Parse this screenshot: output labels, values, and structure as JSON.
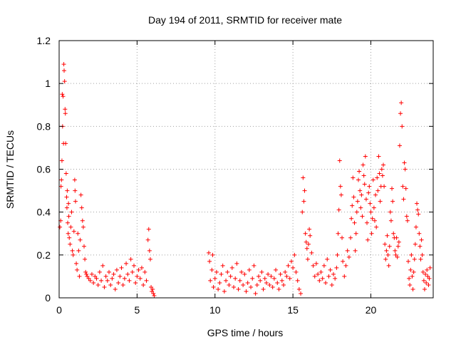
{
  "chart_data": {
    "type": "scatter",
    "title": "Day 194 of 2011, SRMTID for receiver mate",
    "xlabel": "GPS time / hours",
    "ylabel": "SRMTID / TECUs",
    "xlim": [
      0,
      24
    ],
    "ylim": [
      0,
      1.2
    ],
    "x_ticks": [
      0,
      5,
      10,
      15,
      20
    ],
    "x_tick_labels": [
      "0",
      "5",
      "10",
      "15",
      "20"
    ],
    "y_ticks": [
      0,
      0.2,
      0.4,
      0.6,
      0.8,
      1.0,
      1.2
    ],
    "y_tick_labels": [
      "0",
      "0.2",
      "0.4",
      "0.6",
      "0.8",
      "1",
      "1.2"
    ],
    "grid": true,
    "marker": "+",
    "color": "#ff0000",
    "series": [
      {
        "name": "SRMTID",
        "points": [
          [
            0.05,
            0.33
          ],
          [
            0.1,
            0.36
          ],
          [
            0.12,
            0.52
          ],
          [
            0.15,
            0.55
          ],
          [
            0.18,
            0.64
          ],
          [
            0.2,
            0.95
          ],
          [
            0.22,
            0.8
          ],
          [
            0.25,
            0.94
          ],
          [
            0.28,
            0.72
          ],
          [
            0.3,
            1.09
          ],
          [
            0.32,
            1.06
          ],
          [
            0.35,
            1.01
          ],
          [
            0.38,
            0.88
          ],
          [
            0.4,
            0.86
          ],
          [
            0.42,
            0.72
          ],
          [
            0.45,
            0.58
          ],
          [
            0.48,
            0.47
          ],
          [
            0.5,
            0.42
          ],
          [
            0.52,
            0.5
          ],
          [
            0.55,
            0.35
          ],
          [
            0.58,
            0.3
          ],
          [
            0.6,
            0.44
          ],
          [
            0.62,
            0.38
          ],
          [
            0.65,
            0.28
          ],
          [
            0.7,
            0.25
          ],
          [
            0.75,
            0.33
          ],
          [
            0.8,
            0.4
          ],
          [
            0.85,
            0.22
          ],
          [
            0.9,
            0.2
          ],
          [
            0.95,
            0.31
          ],
          [
            1.0,
            0.55
          ],
          [
            1.02,
            0.5
          ],
          [
            1.05,
            0.45
          ],
          [
            1.1,
            0.16
          ],
          [
            1.15,
            0.13
          ],
          [
            1.2,
            0.3
          ],
          [
            1.25,
            0.22
          ],
          [
            1.3,
            0.1
          ],
          [
            1.35,
            0.27
          ],
          [
            1.4,
            0.48
          ],
          [
            1.45,
            0.42
          ],
          [
            1.5,
            0.36
          ],
          [
            1.55,
            0.33
          ],
          [
            1.6,
            0.24
          ],
          [
            1.65,
            0.18
          ],
          [
            1.7,
            0.12
          ],
          [
            1.75,
            0.11
          ],
          [
            1.8,
            0.1
          ],
          [
            1.9,
            0.09
          ],
          [
            2.0,
            0.08
          ],
          [
            2.1,
            0.11
          ],
          [
            2.2,
            0.07
          ],
          [
            2.3,
            0.1
          ],
          [
            2.4,
            0.09
          ],
          [
            2.5,
            0.06
          ],
          [
            2.6,
            0.12
          ],
          [
            2.7,
            0.08
          ],
          [
            2.8,
            0.15
          ],
          [
            2.9,
            0.05
          ],
          [
            3.0,
            0.1
          ],
          [
            3.1,
            0.08
          ],
          [
            3.2,
            0.12
          ],
          [
            3.3,
            0.06
          ],
          [
            3.4,
            0.09
          ],
          [
            3.5,
            0.11
          ],
          [
            3.6,
            0.04
          ],
          [
            3.7,
            0.13
          ],
          [
            3.8,
            0.07
          ],
          [
            3.9,
            0.1
          ],
          [
            4.0,
            0.14
          ],
          [
            4.1,
            0.06
          ],
          [
            4.2,
            0.09
          ],
          [
            4.3,
            0.16
          ],
          [
            4.4,
            0.11
          ],
          [
            4.5,
            0.08
          ],
          [
            4.6,
            0.18
          ],
          [
            4.7,
            0.12
          ],
          [
            4.8,
            0.15
          ],
          [
            4.9,
            0.07
          ],
          [
            5.0,
            0.1
          ],
          [
            5.1,
            0.13
          ],
          [
            5.2,
            0.09
          ],
          [
            5.3,
            0.14
          ],
          [
            5.4,
            0.06
          ],
          [
            5.5,
            0.12
          ],
          [
            5.6,
            0.08
          ],
          [
            5.7,
            0.27
          ],
          [
            5.75,
            0.32
          ],
          [
            5.8,
            0.22
          ],
          [
            5.85,
            0.18
          ],
          [
            5.9,
            0.05
          ],
          [
            5.95,
            0.03
          ],
          [
            6.0,
            0.04
          ],
          [
            6.05,
            0.02
          ],
          [
            6.1,
            0.01
          ],
          [
            9.6,
            0.21
          ],
          [
            9.65,
            0.17
          ],
          [
            9.7,
            0.08
          ],
          [
            9.8,
            0.13
          ],
          [
            9.85,
            0.2
          ],
          [
            9.9,
            0.05
          ],
          [
            10.0,
            0.09
          ],
          [
            10.1,
            0.12
          ],
          [
            10.2,
            0.04
          ],
          [
            10.3,
            0.07
          ],
          [
            10.4,
            0.11
          ],
          [
            10.5,
            0.15
          ],
          [
            10.6,
            0.03
          ],
          [
            10.7,
            0.08
          ],
          [
            10.8,
            0.12
          ],
          [
            10.9,
            0.06
          ],
          [
            11.0,
            0.1
          ],
          [
            11.1,
            0.14
          ],
          [
            11.2,
            0.05
          ],
          [
            11.3,
            0.09
          ],
          [
            11.4,
            0.16
          ],
          [
            11.5,
            0.04
          ],
          [
            11.6,
            0.08
          ],
          [
            11.7,
            0.12
          ],
          [
            11.8,
            0.06
          ],
          [
            11.9,
            0.11
          ],
          [
            12.0,
            0.03
          ],
          [
            12.1,
            0.07
          ],
          [
            12.2,
            0.13
          ],
          [
            12.3,
            0.05
          ],
          [
            12.4,
            0.09
          ],
          [
            12.5,
            0.15
          ],
          [
            12.6,
            0.02
          ],
          [
            12.7,
            0.06
          ],
          [
            12.8,
            0.1
          ],
          [
            12.9,
            0.08
          ],
          [
            13.0,
            0.12
          ],
          [
            13.1,
            0.04
          ],
          [
            13.2,
            0.09
          ],
          [
            13.3,
            0.07
          ],
          [
            13.4,
            0.11
          ],
          [
            13.5,
            0.06
          ],
          [
            13.6,
            0.1
          ],
          [
            13.7,
            0.05
          ],
          [
            13.8,
            0.09
          ],
          [
            13.9,
            0.13
          ],
          [
            14.0,
            0.07
          ],
          [
            14.1,
            0.04
          ],
          [
            14.2,
            0.11
          ],
          [
            14.3,
            0.08
          ],
          [
            14.4,
            0.06
          ],
          [
            14.5,
            0.12
          ],
          [
            14.6,
            0.1
          ],
          [
            14.7,
            0.15
          ],
          [
            14.8,
            0.09
          ],
          [
            14.9,
            0.17
          ],
          [
            15.0,
            0.14
          ],
          [
            15.1,
            0.2
          ],
          [
            15.2,
            0.12
          ],
          [
            15.3,
            0.08
          ],
          [
            15.4,
            0.04
          ],
          [
            15.5,
            0.02
          ],
          [
            15.6,
            0.4
          ],
          [
            15.65,
            0.56
          ],
          [
            15.7,
            0.45
          ],
          [
            15.75,
            0.5
          ],
          [
            15.8,
            0.3
          ],
          [
            15.85,
            0.26
          ],
          [
            15.9,
            0.23
          ],
          [
            15.95,
            0.18
          ],
          [
            16.0,
            0.25
          ],
          [
            16.05,
            0.32
          ],
          [
            16.1,
            0.29
          ],
          [
            16.2,
            0.21
          ],
          [
            16.3,
            0.15
          ],
          [
            16.4,
            0.1
          ],
          [
            16.5,
            0.16
          ],
          [
            16.6,
            0.11
          ],
          [
            16.7,
            0.08
          ],
          [
            16.8,
            0.12
          ],
          [
            16.9,
            0.09
          ],
          [
            17.0,
            0.15
          ],
          [
            17.1,
            0.07
          ],
          [
            17.2,
            0.18
          ],
          [
            17.3,
            0.1
          ],
          [
            17.4,
            0.13
          ],
          [
            17.5,
            0.06
          ],
          [
            17.6,
            0.11
          ],
          [
            17.7,
            0.09
          ],
          [
            17.8,
            0.14
          ],
          [
            17.85,
            0.2
          ],
          [
            17.9,
            0.3
          ],
          [
            17.95,
            0.41
          ],
          [
            18.0,
            0.64
          ],
          [
            18.05,
            0.52
          ],
          [
            18.1,
            0.48
          ],
          [
            18.15,
            0.28
          ],
          [
            18.2,
            0.17
          ],
          [
            18.3,
            0.1
          ],
          [
            18.4,
            0.15
          ],
          [
            18.5,
            0.22
          ],
          [
            18.6,
            0.19
          ],
          [
            18.7,
            0.28
          ],
          [
            18.75,
            0.37
          ],
          [
            18.8,
            0.43
          ],
          [
            18.85,
            0.56
          ],
          [
            18.9,
            0.47
          ],
          [
            18.95,
            0.35
          ],
          [
            19.0,
            0.22
          ],
          [
            19.05,
            0.3
          ],
          [
            19.1,
            0.4
          ],
          [
            19.15,
            0.45
          ],
          [
            19.2,
            0.55
          ],
          [
            19.25,
            0.59
          ],
          [
            19.3,
            0.5
          ],
          [
            19.35,
            0.42
          ],
          [
            19.4,
            0.48
          ],
          [
            19.45,
            0.38
          ],
          [
            19.5,
            0.62
          ],
          [
            19.55,
            0.57
          ],
          [
            19.6,
            0.53
          ],
          [
            19.65,
            0.66
          ],
          [
            19.7,
            0.46
          ],
          [
            19.75,
            0.35
          ],
          [
            19.8,
            0.27
          ],
          [
            19.85,
            0.49
          ],
          [
            19.9,
            0.52
          ],
          [
            19.95,
            0.44
          ],
          [
            20.0,
            0.4
          ],
          [
            20.05,
            0.3
          ],
          [
            20.1,
            0.37
          ],
          [
            20.15,
            0.55
          ],
          [
            20.2,
            0.42
          ],
          [
            20.25,
            0.36
          ],
          [
            20.3,
            0.48
          ],
          [
            20.35,
            0.33
          ],
          [
            20.4,
            0.56
          ],
          [
            20.45,
            0.5
          ],
          [
            20.5,
            0.66
          ],
          [
            20.55,
            0.58
          ],
          [
            20.6,
            0.45
          ],
          [
            20.65,
            0.52
          ],
          [
            20.7,
            0.6
          ],
          [
            20.75,
            0.57
          ],
          [
            20.8,
            0.62
          ],
          [
            20.85,
            0.52
          ],
          [
            20.9,
            0.25
          ],
          [
            20.95,
            0.18
          ],
          [
            21.0,
            0.22
          ],
          [
            21.05,
            0.29
          ],
          [
            21.1,
            0.2
          ],
          [
            21.15,
            0.15
          ],
          [
            21.2,
            0.24
          ],
          [
            21.25,
            0.4
          ],
          [
            21.3,
            0.36
          ],
          [
            21.35,
            0.51
          ],
          [
            21.4,
            0.45
          ],
          [
            21.45,
            0.3
          ],
          [
            21.5,
            0.28
          ],
          [
            21.55,
            0.22
          ],
          [
            21.6,
            0.2
          ],
          [
            21.65,
            0.28
          ],
          [
            21.7,
            0.19
          ],
          [
            21.75,
            0.24
          ],
          [
            21.8,
            0.26
          ],
          [
            21.85,
            0.71
          ],
          [
            21.9,
            0.86
          ],
          [
            21.95,
            0.91
          ],
          [
            22.0,
            0.8
          ],
          [
            22.05,
            0.52
          ],
          [
            22.1,
            0.46
          ],
          [
            22.15,
            0.63
          ],
          [
            22.2,
            0.6
          ],
          [
            22.25,
            0.51
          ],
          [
            22.3,
            0.38
          ],
          [
            22.35,
            0.36
          ],
          [
            22.4,
            0.17
          ],
          [
            22.45,
            0.09
          ],
          [
            22.5,
            0.06
          ],
          [
            22.55,
            0.13
          ],
          [
            22.6,
            0.2
          ],
          [
            22.65,
            0.1
          ],
          [
            22.7,
            0.04
          ],
          [
            22.75,
            0.12
          ],
          [
            22.8,
            0.18
          ],
          [
            22.85,
            0.25
          ],
          [
            22.9,
            0.33
          ],
          [
            22.95,
            0.44
          ],
          [
            23.0,
            0.41
          ],
          [
            23.05,
            0.39
          ],
          [
            23.1,
            0.3
          ],
          [
            23.15,
            0.24
          ],
          [
            23.2,
            0.18
          ],
          [
            23.25,
            0.27
          ],
          [
            23.3,
            0.2
          ],
          [
            23.35,
            0.12
          ],
          [
            23.4,
            0.08
          ],
          [
            23.45,
            0.04
          ],
          [
            23.5,
            0.11
          ],
          [
            23.55,
            0.07
          ],
          [
            23.6,
            0.13
          ],
          [
            23.65,
            0.1
          ],
          [
            23.7,
            0.06
          ],
          [
            23.75,
            0.09
          ],
          [
            23.8,
            0.14
          ]
        ]
      }
    ]
  }
}
